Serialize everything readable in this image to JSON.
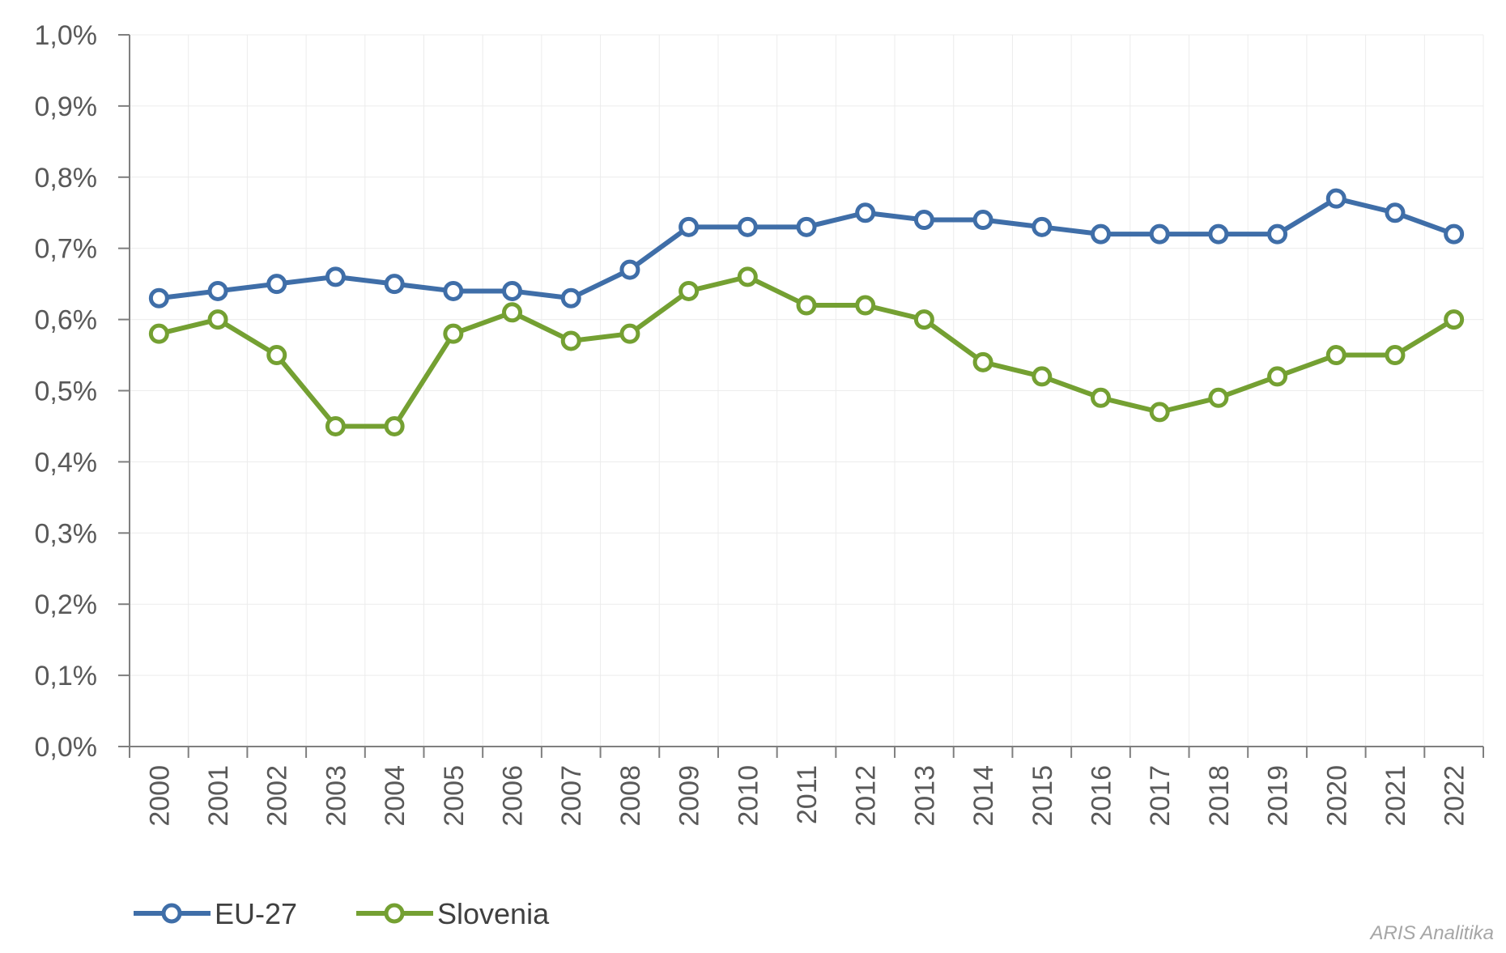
{
  "chart_data": {
    "type": "line",
    "categories": [
      "2000",
      "2001",
      "2002",
      "2003",
      "2004",
      "2005",
      "2006",
      "2007",
      "2008",
      "2009",
      "2010",
      "2011",
      "2012",
      "2013",
      "2014",
      "2015",
      "2016",
      "2017",
      "2018",
      "2019",
      "2020",
      "2021",
      "2022"
    ],
    "yticks": [
      "0,0%",
      "0,1%",
      "0,2%",
      "0,3%",
      "0,4%",
      "0,5%",
      "0,6%",
      "0,7%",
      "0,8%",
      "0,9%",
      "1,0%"
    ],
    "ylim": [
      0,
      1.0
    ],
    "grid": true,
    "legend_position": "bottom-left",
    "series": [
      {
        "name": "EU-27",
        "color": "#3f6ea8",
        "values": [
          0.63,
          0.64,
          0.65,
          0.66,
          0.65,
          0.64,
          0.64,
          0.63,
          0.67,
          0.73,
          0.73,
          0.73,
          0.75,
          0.74,
          0.74,
          0.73,
          0.72,
          0.72,
          0.72,
          0.72,
          0.77,
          0.75,
          0.72
        ]
      },
      {
        "name": "Slovenia",
        "color": "#74a032",
        "values": [
          0.58,
          0.6,
          0.55,
          0.45,
          0.45,
          0.58,
          0.61,
          0.57,
          0.58,
          0.64,
          0.66,
          0.62,
          0.62,
          0.6,
          0.54,
          0.52,
          0.49,
          0.47,
          0.49,
          0.52,
          0.55,
          0.55,
          0.6
        ]
      }
    ]
  },
  "source_label": "ARIS Analitika"
}
